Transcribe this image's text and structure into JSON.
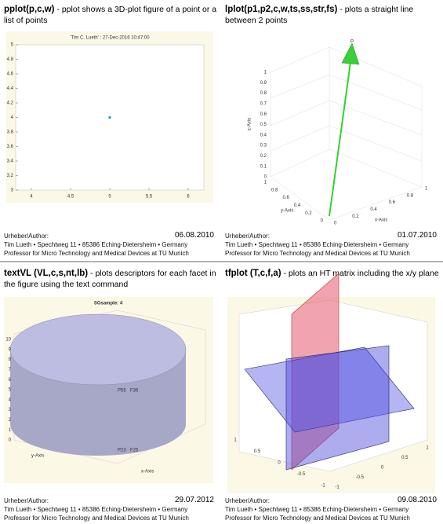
{
  "panels": [
    {
      "title_bold": "pplot(p,c,w)",
      "title_rest": " - pplot shows a 3D-plot figure of a point or a list of points",
      "author_label": "Urheber/Author:",
      "date": "06.08.2010",
      "address": "Tim Lueth • Spechtweg 11 • 85386 Eching-Dietersheim • Germany",
      "affiliation": "Professor for Micro Technology and Medical Devices at TU Munich",
      "figure": {
        "title": "'Tim C. Lueth' : 27-Dec-2016 10:47:00",
        "xlim": [
          3.8,
          6.2
        ],
        "ylim": [
          3,
          5
        ],
        "xticks": [
          4,
          4.5,
          5,
          5.5,
          6
        ],
        "yticks": [
          3,
          3.2,
          3.4,
          3.6,
          3.8,
          4,
          4.2,
          4.4,
          4.6,
          4.8,
          5
        ],
        "point": {
          "x": 5,
          "y": 4
        }
      }
    },
    {
      "title_bold": "lplot(p1,p2,c,w,ts,ss,str,fs)",
      "title_rest": " - plots a straight line between 2 points",
      "author_label": "Urheber/Author:",
      "date": "01.07.2010",
      "address": "Tim Lueth • Spechtweg 11 • 85386 Eching-Dietersheim • Germany",
      "affiliation": "Professor for Micro Technology and Medical Devices at TU Munich",
      "figure": {
        "point_label": "P",
        "zlabel": "z-Axis",
        "ylabel": "y-Axis",
        "xlabel": "x-Axis",
        "zticks": [
          "0",
          "0.1",
          "0.2",
          "0.3",
          "0.4",
          "0.5",
          "0.6",
          "0.7",
          "0.8",
          "0.9",
          "1"
        ],
        "yticks": [
          "1",
          "0.8",
          "0.6",
          "0.4",
          "0.2",
          "0"
        ],
        "xticks": [
          "0",
          "0.2",
          "0.4",
          "0.6",
          "0.8",
          "1"
        ]
      }
    },
    {
      "title_bold": "textVL (VL,c,s,nt,lb)",
      "title_rest": " - plots descriptors for each facet in the figure using the text command",
      "author_label": "Urheber/Author:",
      "date": "29.07.2012",
      "address": "Tim Lueth • Spechtweg 11 • 85386 Eching-Dietersheim • Germany",
      "affiliation": "Professor for Micro Technology and Medical Devices at TU Munich",
      "figure": {
        "title": "SGsample: 4",
        "labels": [
          "P55",
          "F36",
          "P23",
          "F25"
        ],
        "ylabel": "y-Axis",
        "xlabel": "x-Axis",
        "zticks": [
          "0",
          "1",
          "2",
          "3",
          "4",
          "5",
          "6",
          "7",
          "8",
          "9",
          "10"
        ]
      }
    },
    {
      "title_bold": "tfplot (T,c,f,a)",
      "title_rest": " - plots an HT matrix including the x/y plane",
      "author_label": "Urheber/Author:",
      "date": "09.08.2010",
      "address": "Tim Lueth • Spechtweg 11 • 85386 Eching-Dietersheim • Germany",
      "affiliation": "Professor for Micro Technology and Medical Devices at TU Munich",
      "figure": {
        "yticks": [
          "1",
          "0.5",
          "0",
          "-0.5",
          "-1"
        ],
        "xticks": [
          "-1",
          "-0.5",
          "0",
          "0.5",
          "1"
        ]
      }
    }
  ]
}
